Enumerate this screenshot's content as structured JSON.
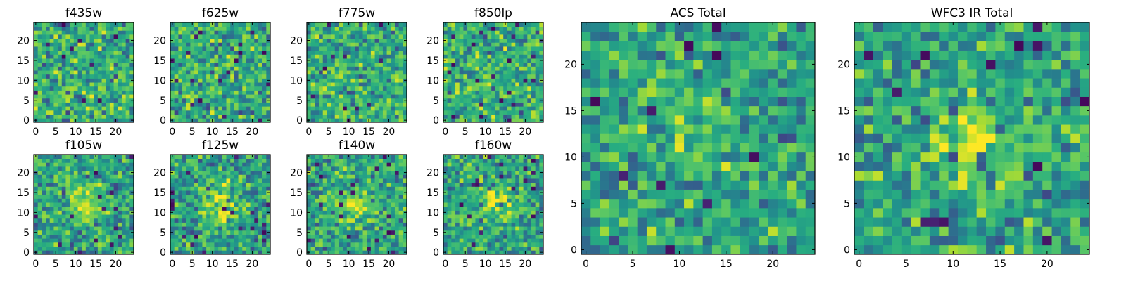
{
  "chart_data": [
    {
      "type": "heatmap",
      "title": "f435w",
      "grid": [
        25,
        25
      ],
      "xticks": [
        "0",
        "5",
        "10",
        "15",
        "20"
      ],
      "yticks": [
        "0",
        "5",
        "10",
        "15",
        "20"
      ],
      "colormap": "viridis",
      "pattern": "noise",
      "seed": 11
    },
    {
      "type": "heatmap",
      "title": "f625w",
      "grid": [
        25,
        25
      ],
      "xticks": [
        "0",
        "5",
        "10",
        "15",
        "20"
      ],
      "yticks": [
        "0",
        "5",
        "10",
        "15",
        "20"
      ],
      "colormap": "viridis",
      "pattern": "noise",
      "seed": 23
    },
    {
      "type": "heatmap",
      "title": "f775w",
      "grid": [
        25,
        25
      ],
      "xticks": [
        "0",
        "5",
        "10",
        "15",
        "20"
      ],
      "yticks": [
        "0",
        "5",
        "10",
        "15",
        "20"
      ],
      "colormap": "viridis",
      "pattern": "noise",
      "seed": 37
    },
    {
      "type": "heatmap",
      "title": "f850lp",
      "grid": [
        25,
        25
      ],
      "xticks": [
        "0",
        "5",
        "10",
        "15",
        "20"
      ],
      "yticks": [
        "0",
        "5",
        "10",
        "15",
        "20"
      ],
      "colormap": "viridis",
      "pattern": "noise",
      "seed": 41
    },
    {
      "type": "heatmap",
      "title": "f105w",
      "grid": [
        25,
        25
      ],
      "xticks": [
        "0",
        "5",
        "10",
        "15",
        "20"
      ],
      "yticks": [
        "0",
        "5",
        "10",
        "15",
        "20"
      ],
      "colormap": "viridis",
      "pattern": "source",
      "seed": 53
    },
    {
      "type": "heatmap",
      "title": "f125w",
      "grid": [
        25,
        25
      ],
      "xticks": [
        "0",
        "5",
        "10",
        "15",
        "20"
      ],
      "yticks": [
        "0",
        "5",
        "10",
        "15",
        "20"
      ],
      "colormap": "viridis",
      "pattern": "source",
      "seed": 67
    },
    {
      "type": "heatmap",
      "title": "f140w",
      "grid": [
        25,
        25
      ],
      "xticks": [
        "0",
        "5",
        "10",
        "15",
        "20"
      ],
      "yticks": [
        "0",
        "5",
        "10",
        "15",
        "20"
      ],
      "colormap": "viridis",
      "pattern": "source",
      "seed": 71
    },
    {
      "type": "heatmap",
      "title": "f160w",
      "grid": [
        25,
        25
      ],
      "xticks": [
        "0",
        "5",
        "10",
        "15",
        "20"
      ],
      "yticks": [
        "0",
        "5",
        "10",
        "15",
        "20"
      ],
      "colormap": "viridis",
      "pattern": "source",
      "seed": 89
    },
    {
      "type": "heatmap",
      "title": "ACS Total",
      "grid": [
        25,
        25
      ],
      "xticks": [
        "0",
        "5",
        "10",
        "15",
        "20"
      ],
      "yticks": [
        "0",
        "5",
        "10",
        "15",
        "20"
      ],
      "colormap": "viridis",
      "pattern": "mild-source",
      "seed": 97
    },
    {
      "type": "heatmap",
      "title": "WFC3 IR Total",
      "grid": [
        25,
        25
      ],
      "xticks": [
        "0",
        "5",
        "10",
        "15",
        "20"
      ],
      "yticks": [
        "0",
        "5",
        "10",
        "15",
        "20"
      ],
      "colormap": "viridis",
      "pattern": "source",
      "seed": 103
    }
  ]
}
